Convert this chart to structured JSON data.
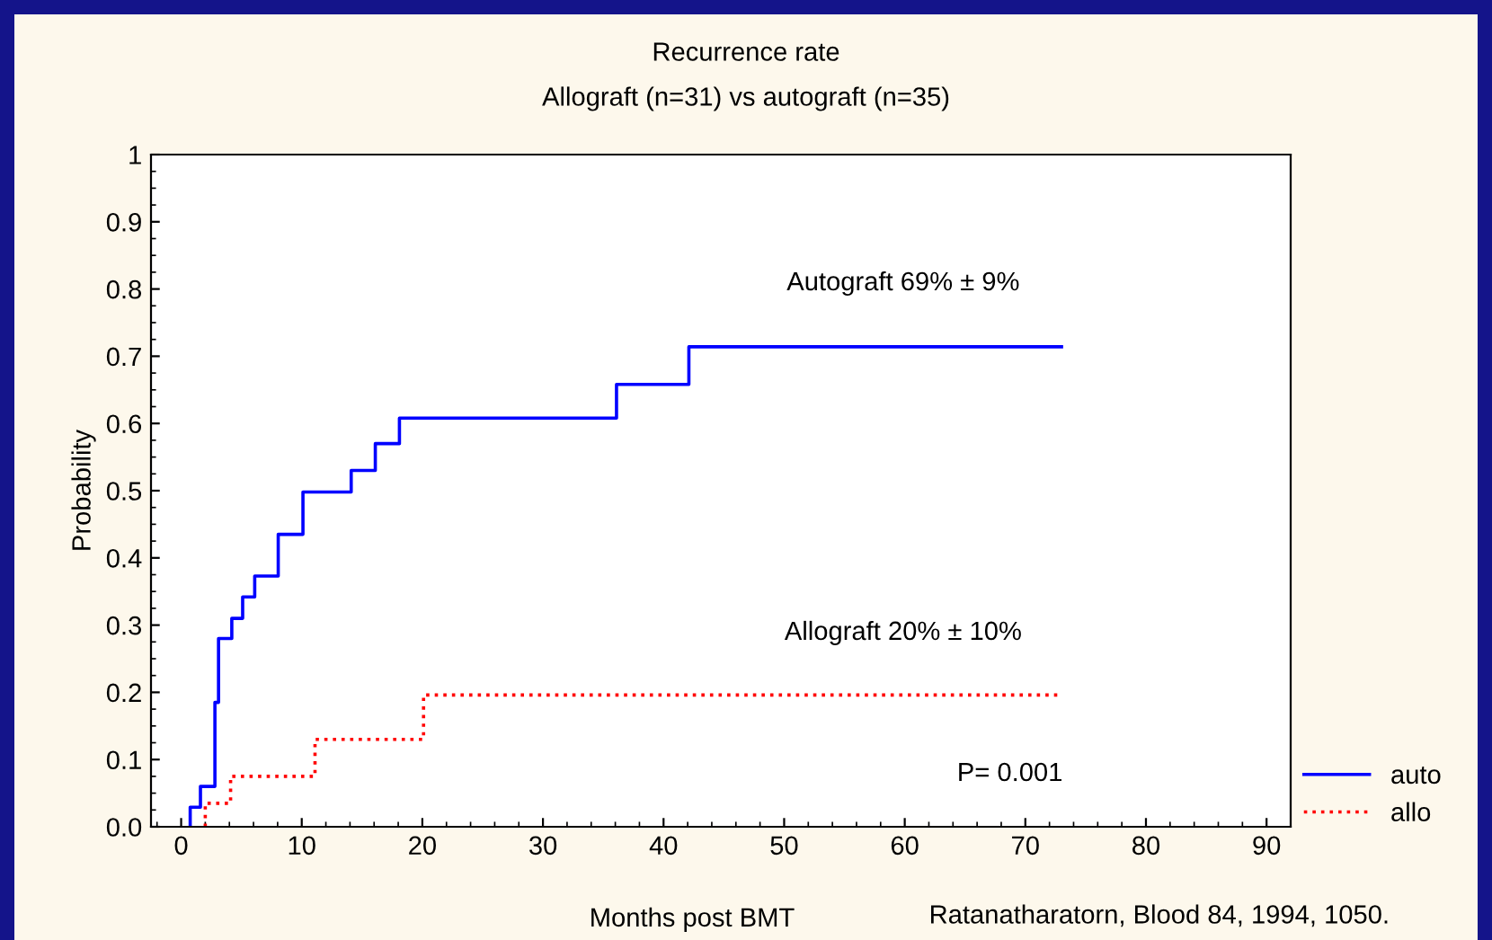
{
  "chart_data": {
    "type": "step",
    "title": "Recurrence rate",
    "subtitle": "Allograft (n=31) vs autograft (n=35)",
    "xlabel": "Months post BMT",
    "ylabel": "Probability",
    "series": [
      {
        "name": "auto",
        "color": "#0000ff",
        "line_style": "solid",
        "x": [
          0.75,
          0.75,
          1.6,
          2.8,
          3.1,
          4.2,
          5.1,
          6.1,
          8.05,
          10.1,
          14.1,
          16.1,
          18.1,
          36.1,
          42.1,
          73
        ],
        "values": [
          0,
          0.029,
          0.06,
          0.185,
          0.28,
          0.31,
          0.342,
          0.373,
          0.435,
          0.498,
          0.53,
          0.57,
          0.608,
          0.658,
          0.714,
          0.714
        ]
      },
      {
        "name": "allo",
        "color": "#ff0000",
        "line_style": "dotted",
        "x": [
          2.0,
          2.0,
          4.1,
          11.1,
          20.1,
          73
        ],
        "values": [
          0,
          0.035,
          0.075,
          0.13,
          0.196,
          0.196
        ]
      }
    ],
    "annotations": [
      "Autograft 69% ± 9%",
      "Allograft 20% ± 10%",
      "P= 0.001",
      "Ratanatharatorn, Blood 84, 1994, 1050."
    ],
    "xlim": [
      -2.5,
      92
    ],
    "xticks": [
      0,
      10,
      20,
      30,
      40,
      50,
      60,
      70,
      80,
      90
    ],
    "ylim": [
      0,
      1
    ],
    "yticks": [
      {
        "value": 0,
        "label": "0.0"
      },
      0.1,
      0.2,
      0.3,
      0.4,
      0.5,
      0.6,
      0.7,
      0.8,
      0.9,
      1
    ],
    "grid": false,
    "legend": "bottom right",
    "marker": "none"
  }
}
